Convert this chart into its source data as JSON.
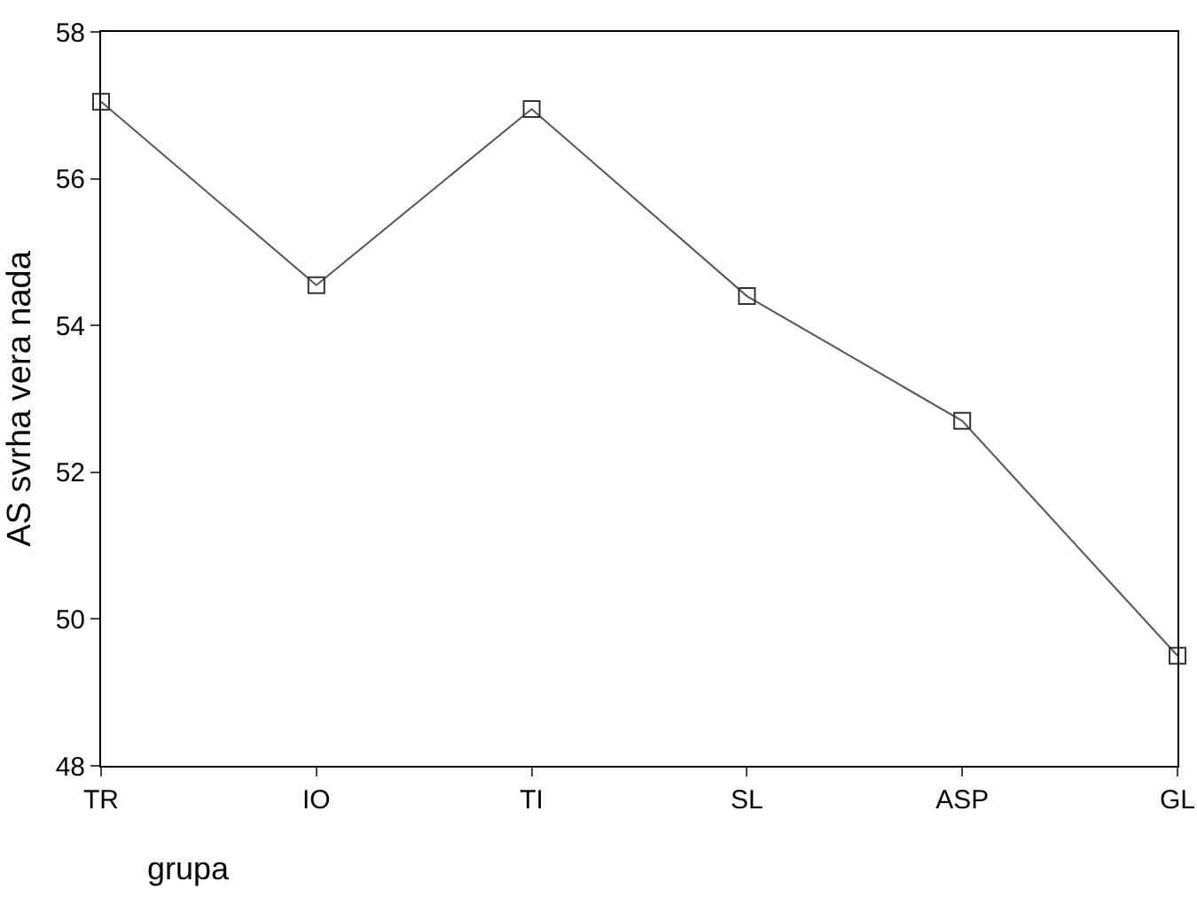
{
  "chart_data": {
    "type": "line",
    "xlabel": "grupa",
    "ylabel": "AS svrha vera nada",
    "categories": [
      "TR",
      "IO",
      "TI",
      "SL",
      "ASP",
      "GL"
    ],
    "series": [
      {
        "color": "#555555",
        "values": [
          57.05,
          54.55,
          56.95,
          54.4,
          52.7,
          49.5
        ]
      }
    ],
    "ylim": [
      48,
      58
    ],
    "yticks": [
      48,
      50,
      52,
      54,
      56,
      58
    ],
    "grid": false,
    "legend": false,
    "marker": "square",
    "line_style": "solid"
  }
}
